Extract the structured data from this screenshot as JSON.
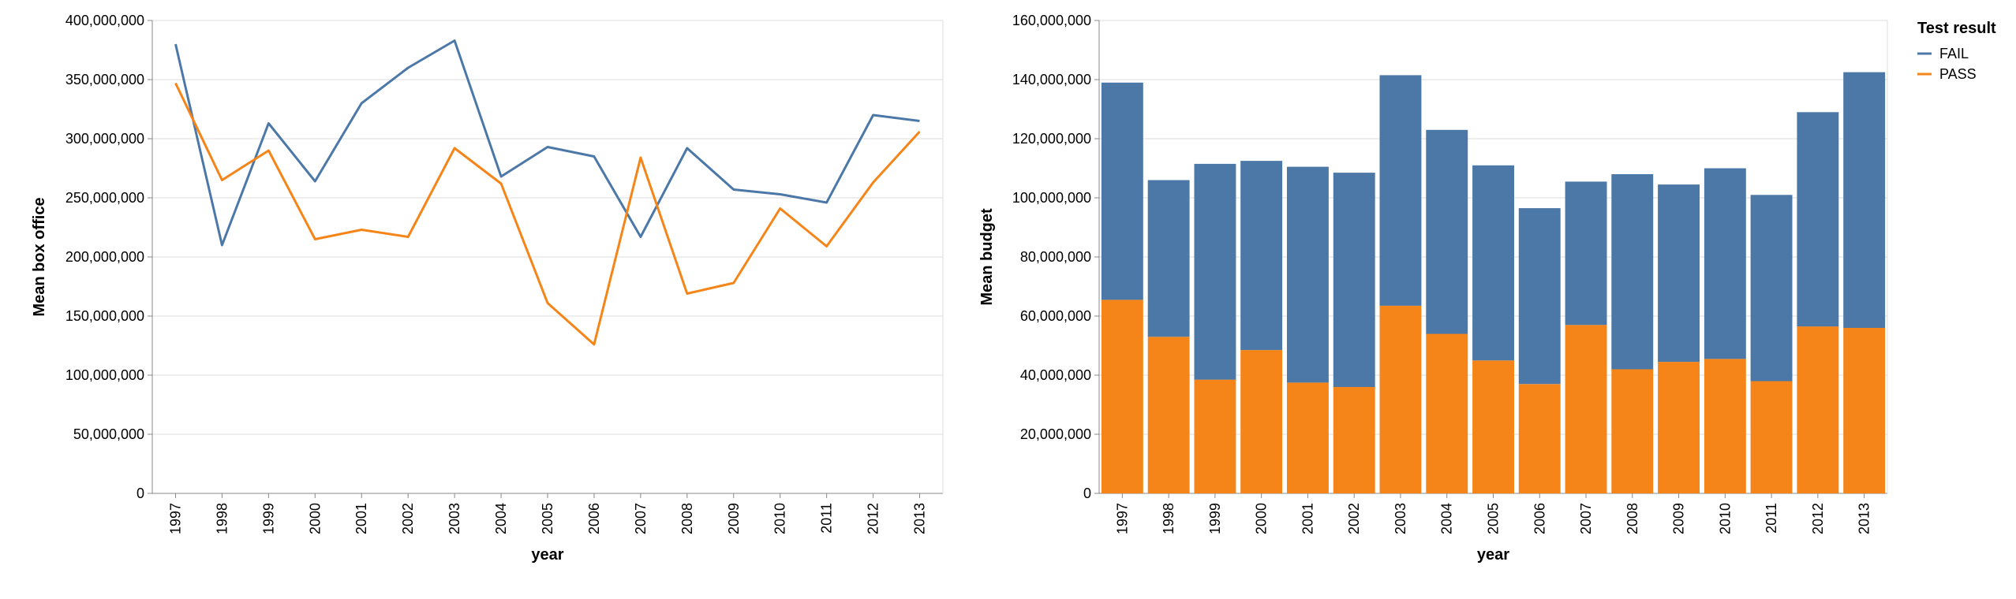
{
  "colors": {
    "FAIL": "#4c78a8",
    "PASS": "#f58518"
  },
  "legend": {
    "title": "Test result",
    "items": [
      "FAIL",
      "PASS"
    ]
  },
  "chart_data": [
    {
      "type": "line",
      "x": [
        "1997",
        "1998",
        "1999",
        "2000",
        "2001",
        "2002",
        "2003",
        "2004",
        "2005",
        "2006",
        "2007",
        "2008",
        "2009",
        "2010",
        "2011",
        "2012",
        "2013"
      ],
      "xlabel": "year",
      "ylabel": "Mean box office",
      "ylim": [
        0,
        400000000
      ],
      "yticks": [
        0,
        50000000,
        100000000,
        150000000,
        200000000,
        250000000,
        300000000,
        350000000,
        400000000
      ],
      "ytick_labels": [
        "0",
        "50,000,000",
        "100,000,000",
        "150,000,000",
        "200,000,000",
        "250,000,000",
        "300,000,000",
        "350,000,000",
        "400,000,000"
      ],
      "grid": true,
      "series": [
        {
          "name": "FAIL",
          "values": [
            380000000,
            210000000,
            313000000,
            264000000,
            330000000,
            360000000,
            383000000,
            268000000,
            293000000,
            285000000,
            217000000,
            292000000,
            257000000,
            253000000,
            246000000,
            320000000,
            315000000
          ]
        },
        {
          "name": "PASS",
          "values": [
            347000000,
            265000000,
            290000000,
            215000000,
            223000000,
            217000000,
            292000000,
            262000000,
            161000000,
            126000000,
            284000000,
            169000000,
            178000000,
            241000000,
            209000000,
            263000000,
            306000000
          ]
        }
      ]
    },
    {
      "type": "bar",
      "stacked": true,
      "categories": [
        "1997",
        "1998",
        "1999",
        "2000",
        "2001",
        "2002",
        "2003",
        "2004",
        "2005",
        "2006",
        "2007",
        "2008",
        "2009",
        "2010",
        "2011",
        "2012",
        "2013"
      ],
      "xlabel": "year",
      "ylabel": "Mean budget",
      "ylim": [
        0,
        160000000
      ],
      "yticks": [
        0,
        20000000,
        40000000,
        60000000,
        80000000,
        100000000,
        120000000,
        140000000,
        160000000
      ],
      "ytick_labels": [
        "0",
        "20,000,000",
        "40,000,000",
        "60,000,000",
        "80,000,000",
        "100,000,000",
        "120,000,000",
        "140,000,000",
        "160,000,000"
      ],
      "grid": true,
      "legend": "top-right",
      "series": [
        {
          "name": "PASS",
          "values": [
            65500000,
            53000000,
            38500000,
            48500000,
            37500000,
            36000000,
            63500000,
            54000000,
            45000000,
            37000000,
            57000000,
            42000000,
            44500000,
            45500000,
            38000000,
            56500000,
            56000000
          ]
        },
        {
          "name": "FAIL",
          "values": [
            73500000,
            53000000,
            73000000,
            64000000,
            73000000,
            72500000,
            78000000,
            69000000,
            66000000,
            59500000,
            48500000,
            66000000,
            60000000,
            64500000,
            63000000,
            72500000,
            86500000
          ]
        }
      ]
    }
  ]
}
